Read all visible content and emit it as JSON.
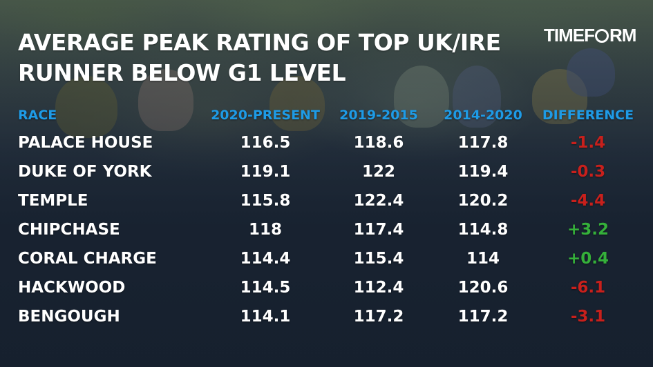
{
  "title_lines": [
    "AVERAGE PEAK RATING OF TOP UK/IRE",
    "RUNNER BELOW G1 LEVEL"
  ],
  "logo": {
    "text_a": "TIMEF",
    "text_b": "RM"
  },
  "colors": {
    "header": "#1e9be6",
    "negative": "#c8201c",
    "positive": "#35b03a",
    "text": "#ffffff"
  },
  "headers": [
    "RACE",
    "2020-PRESENT",
    "2019-2015",
    "2014-2020",
    "DIFFERENCE"
  ],
  "rows": [
    {
      "race": "PALACE HOUSE",
      "c1": "116.5",
      "c2": "118.6",
      "c3": "117.8",
      "diff": "-1.4"
    },
    {
      "race": "DUKE OF YORK",
      "c1": "119.1",
      "c2": "122",
      "c3": "119.4",
      "diff": "-0.3"
    },
    {
      "race": "TEMPLE",
      "c1": "115.8",
      "c2": "122.4",
      "c3": "120.2",
      "diff": "-4.4"
    },
    {
      "race": "CHIPCHASE",
      "c1": "118",
      "c2": "117.4",
      "c3": "114.8",
      "diff": "+3.2"
    },
    {
      "race": "CORAL CHARGE",
      "c1": "114.4",
      "c2": "115.4",
      "c3": "114",
      "diff": "+0.4"
    },
    {
      "race": "HACKWOOD",
      "c1": "114.5",
      "c2": "112.4",
      "c3": "120.6",
      "diff": "-6.1"
    },
    {
      "race": "BENGOUGH",
      "c1": "114.1",
      "c2": "117.2",
      "c3": "117.2",
      "diff": "-3.1"
    }
  ]
}
